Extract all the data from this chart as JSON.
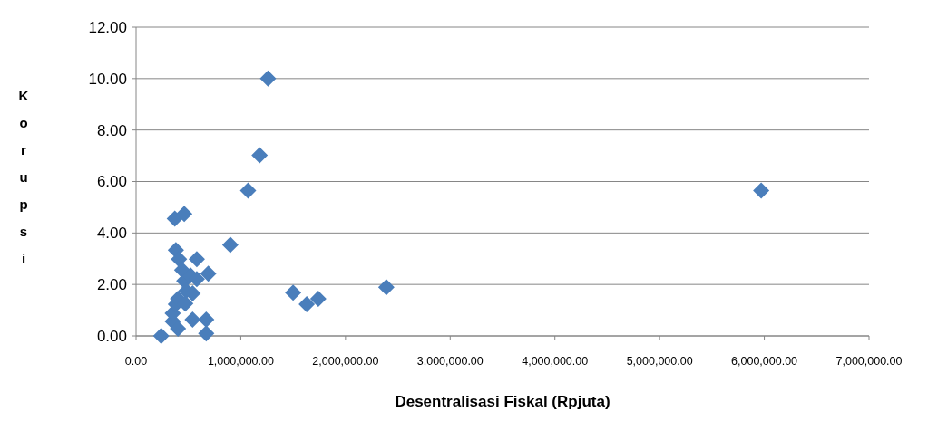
{
  "chart_data": {
    "type": "scatter",
    "xlabel": "Desentralisasi Fiskal (Rpjuta)",
    "ylabel": "Korupsi",
    "x": [
      240000,
      350000,
      350000,
      380000,
      400000,
      400000,
      370000,
      460000,
      380000,
      410000,
      440000,
      460000,
      520000,
      480000,
      470000,
      540000,
      580000,
      580000,
      690000,
      540000,
      670000,
      670000,
      900000,
      1070000,
      1180000,
      1260000,
      1500000,
      1630000,
      1740000,
      2390000,
      5970000
    ],
    "values": [
      0,
      0.56,
      0.88,
      1.23,
      1.44,
      0.28,
      4.56,
      4.74,
      3.33,
      2.98,
      2.56,
      2.14,
      2.35,
      1.75,
      1.26,
      1.65,
      2.21,
      2.98,
      2.42,
      0.63,
      0.63,
      0.1,
      3.54,
      5.65,
      7.02,
      10,
      1.68,
      1.23,
      1.44,
      1.89,
      5.65
    ],
    "color": "#4a7ebb",
    "marker": "diamond",
    "grid": "y",
    "xlim": [
      0,
      7000000
    ],
    "xticks": [
      {
        "value": 0,
        "label": "0.00"
      },
      {
        "value": 1000000,
        "label": "1,000,000.00"
      },
      {
        "value": 2000000,
        "label": "2,000,000.00"
      },
      {
        "value": 3000000,
        "label": "3,000,000.00"
      },
      {
        "value": 4000000,
        "label": "4,000,000.00"
      },
      {
        "value": 5000000,
        "label": "5,000,000.00"
      },
      {
        "value": 6000000,
        "label": "6,000,000.00"
      },
      {
        "value": 7000000,
        "label": "7,000,000.00"
      }
    ],
    "ylim": [
      0,
      12
    ],
    "yticks": [
      {
        "value": 0,
        "label": "0.00"
      },
      {
        "value": 2,
        "label": "2.00"
      },
      {
        "value": 4,
        "label": "4.00"
      },
      {
        "value": 6,
        "label": "6.00"
      },
      {
        "value": 8,
        "label": "8.00"
      },
      {
        "value": 10,
        "label": "10.00"
      },
      {
        "value": 12,
        "label": "12.00"
      }
    ]
  }
}
